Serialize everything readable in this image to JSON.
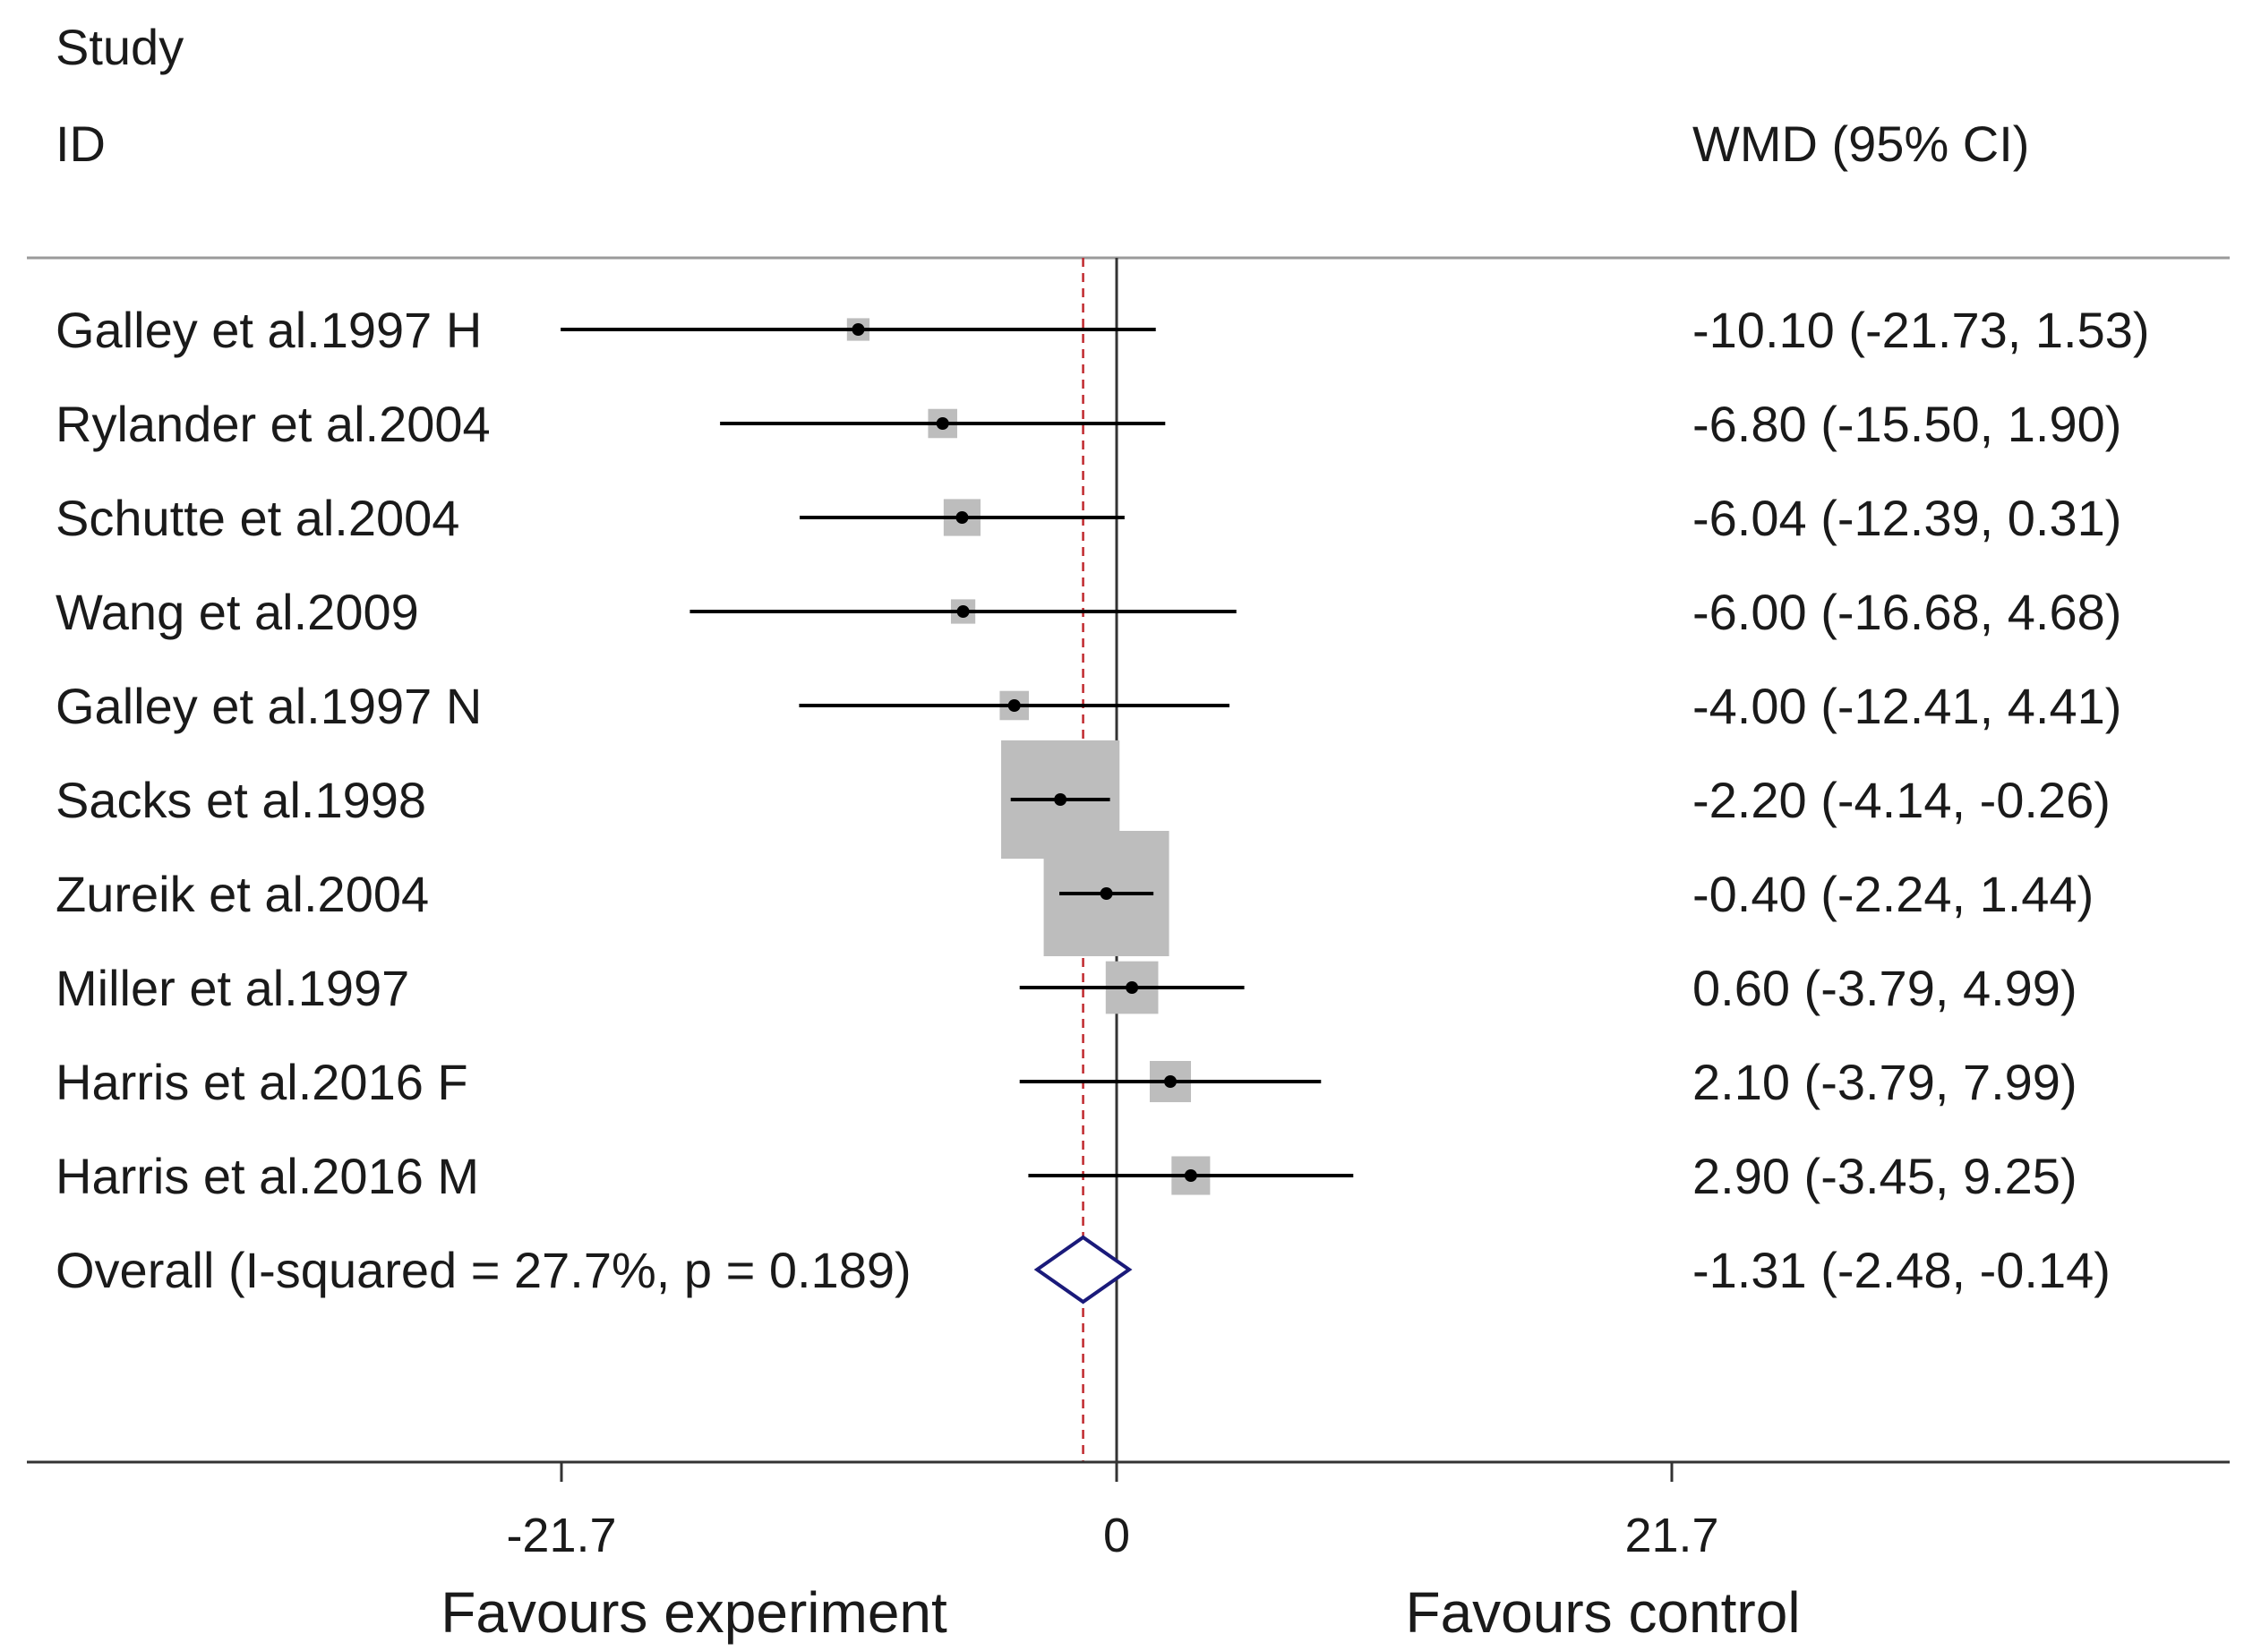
{
  "chart_data": {
    "type": "forest",
    "header": {
      "study_line1": "Study",
      "study_line2": "ID",
      "effect": "WMD (95% CI)"
    },
    "studies": [
      {
        "name": "Galley et al.1997 H",
        "wmd": -10.1,
        "lo": -21.73,
        "hi": 1.53,
        "ci_text": "-10.10 (-21.73, 1.53)",
        "weight": 1.2
      },
      {
        "name": "Rylander et al.2004",
        "wmd": -6.8,
        "lo": -15.5,
        "hi": 1.9,
        "ci_text": "-6.80 (-15.50, 1.90)",
        "weight": 2.0
      },
      {
        "name": "Schutte et al.2004",
        "wmd": -6.04,
        "lo": -12.39,
        "hi": 0.31,
        "ci_text": "-6.04 (-12.39, 0.31)",
        "weight": 3.2
      },
      {
        "name": "Wang et al.2009",
        "wmd": -6.0,
        "lo": -16.68,
        "hi": 4.68,
        "ci_text": "-6.00 (-16.68, 4.68)",
        "weight": 1.4
      },
      {
        "name": "Galley et al.1997 N",
        "wmd": -4.0,
        "lo": -12.41,
        "hi": 4.41,
        "ci_text": "-4.00 (-12.41, 4.41)",
        "weight": 2.0
      },
      {
        "name": "Sacks et al.1998",
        "wmd": -2.2,
        "lo": -4.14,
        "hi": -0.26,
        "ci_text": "-2.20 (-4.14, -0.26)",
        "weight": 33.0
      },
      {
        "name": "Zureik et al.2004",
        "wmd": -0.4,
        "lo": -2.24,
        "hi": 1.44,
        "ci_text": "-0.40 (-2.24, 1.44)",
        "weight": 37.0
      },
      {
        "name": "Miller et al.1997",
        "wmd": 0.6,
        "lo": -3.79,
        "hi": 4.99,
        "ci_text": "0.60 (-3.79, 4.99)",
        "weight": 6.5
      },
      {
        "name": "Harris et al.2016 F",
        "wmd": 2.1,
        "lo": -3.79,
        "hi": 7.99,
        "ci_text": "2.10 (-3.79, 7.99)",
        "weight": 4.0
      },
      {
        "name": "Harris et al.2016 M",
        "wmd": 2.9,
        "lo": -3.45,
        "hi": 9.25,
        "ci_text": "2.90 (-3.45, 9.25)",
        "weight": 3.5
      }
    ],
    "overall": {
      "label": "Overall  (I-squared = 27.7%, p = 0.189)",
      "wmd": -1.31,
      "lo": -2.48,
      "hi": -0.14,
      "ci_text": "-1.31 (-2.48, -0.14)"
    },
    "x_ticks": [
      {
        "value": -21.7,
        "label": "-21.7"
      },
      {
        "value": 0,
        "label": "0"
      },
      {
        "value": 21.7,
        "label": "21.7"
      }
    ],
    "xlabel_left": "Favours experiment",
    "xlabel_right": "Favours control",
    "colors": {
      "ci_line": "#000000",
      "weight_box": "#bdbdbd",
      "null_line": "#333333",
      "overall_line": "#c0282d",
      "diamond": "#1a1a7a"
    }
  }
}
